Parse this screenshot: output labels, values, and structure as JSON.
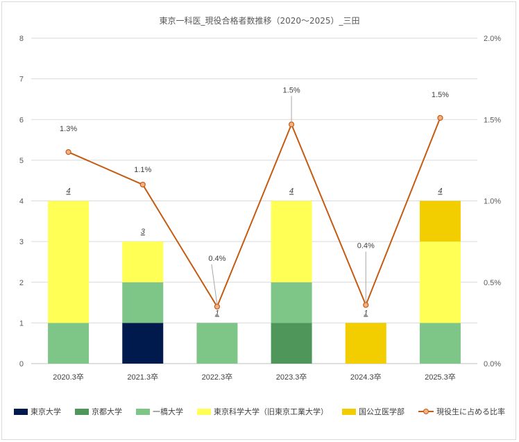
{
  "chart_data": {
    "type": "bar",
    "title": "東京一科医_現役合格者数推移（2020～2025）_三田",
    "categories": [
      "2020.3卒",
      "2021.3卒",
      "2022.3卒",
      "2023.3卒",
      "2024.3卒",
      "2025.3卒"
    ],
    "y_axis": {
      "min": 0,
      "max": 8,
      "step": 1,
      "ticks": [
        "0",
        "1",
        "2",
        "3",
        "4",
        "5",
        "6",
        "7",
        "8"
      ]
    },
    "y2_axis": {
      "min": 0,
      "max": 2.0,
      "step": 0.5,
      "ticks": [
        "0.0%",
        "0.5%",
        "1.0%",
        "1.5%",
        "2.0%"
      ]
    },
    "series": [
      {
        "name": "東京大学",
        "color": "#001a4d",
        "values": [
          0,
          1,
          0,
          0,
          0,
          0
        ]
      },
      {
        "name": "京都大学",
        "color": "#4e9659",
        "values": [
          0,
          0,
          0,
          1,
          0,
          0
        ]
      },
      {
        "name": "一橋大学",
        "color": "#7ec688",
        "values": [
          1,
          1,
          1,
          1,
          0,
          1
        ]
      },
      {
        "name": "東京科学大学（旧東京工業大学）",
        "color": "#ffff55",
        "values": [
          3,
          1,
          0,
          2,
          0,
          2
        ]
      },
      {
        "name": "国公立医学部",
        "color": "#f2cd00",
        "values": [
          0,
          0,
          0,
          0,
          1,
          1
        ]
      }
    ],
    "totals": [
      "4",
      "3",
      "1",
      "4",
      "1",
      "4"
    ],
    "line_series": {
      "name": "現役生に占める比率",
      "color": "#c55a11",
      "marker_fill": "#f4b183",
      "values": [
        1.3,
        1.1,
        0.35,
        1.47,
        0.36,
        1.51
      ],
      "labels": [
        "1.3%",
        "1.1%",
        "0.4%",
        "1.5%",
        "0.4%",
        "1.5%"
      ]
    },
    "grid": true,
    "legend_position": "bottom"
  }
}
